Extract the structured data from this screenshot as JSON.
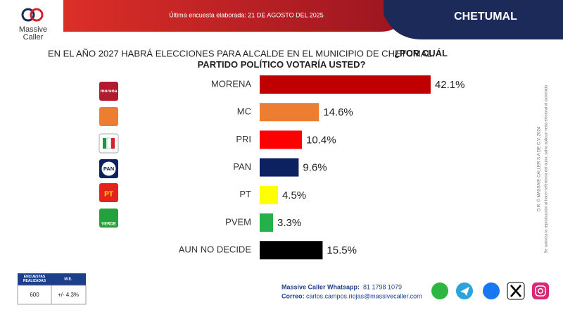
{
  "brand": {
    "line1": "Massive",
    "line2": "Caller"
  },
  "header": {
    "survey_date": "Última encuesta elaborada: 21 DE AGOSTO DEL 2025",
    "city": "CHETUMAL"
  },
  "chart_data": {
    "type": "hbar",
    "title": "EN EL AÑO 2027 HABRÁ ELECCIONES PARA ALCALDE EN EL MUNICIPIO DE CHETUMAL.",
    "title_bold": "¿POR CUÁL PARTIDO POLÍTICO VOTARÍA USTED?",
    "categories": [
      "MORENA",
      "MC",
      "PRI",
      "PAN",
      "PT",
      "PVEM",
      "AUN NO DECIDE"
    ],
    "values": [
      42.1,
      14.6,
      10.4,
      9.6,
      4.5,
      3.3,
      15.5
    ],
    "value_labels": [
      "42.1%",
      "14.6%",
      "10.4%",
      "9.6%",
      "4.5%",
      "3.3%",
      "15.5%"
    ],
    "colors": [
      "#c00000",
      "#ed7d31",
      "#ff0000",
      "#0d2060",
      "#ffff00",
      "#22b14c",
      "#000000"
    ]
  },
  "logos": {
    "morena": "morena",
    "pan": "PAN",
    "pt": "PT",
    "pvem": "VERDE"
  },
  "side_note": {
    "copyright": "D.R. © MASSIVE CALLER S.A DE C.V. 2024",
    "notice": "Se autoriza la reproducción al hacer referencia del autor, salvo aplique veda electoral al contenido"
  },
  "table": {
    "header": [
      "ENCUESTAS REALIZADAS",
      "M.E."
    ],
    "row": [
      "600",
      "+/- 4.3%"
    ]
  },
  "footer": {
    "whatsapp_label": "Massive Caller Whatsapp:",
    "whatsapp": "81 1798 1079",
    "email_label": "Correo:",
    "email": "carlos.campos.riojas@massivecaller.com"
  }
}
